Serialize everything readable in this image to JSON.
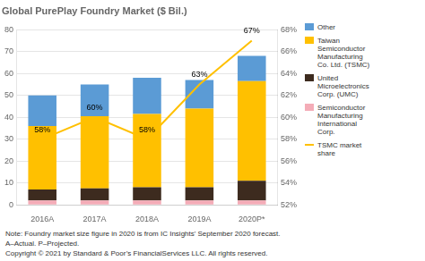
{
  "chart_data": {
    "type": "bar",
    "title": "Global PurePlay Foundry Market ($ Bil.)",
    "categories": [
      "2016A",
      "2017A",
      "2018A",
      "2019A",
      "2020P*"
    ],
    "stacked": true,
    "grid": true,
    "legend": "right",
    "series": [
      {
        "name": "Semiconductor\nManufacturing\nInternational\nCorp.",
        "color": "#f4acb7",
        "values": [
          2,
          2,
          2,
          2,
          2
        ]
      },
      {
        "name": "United\nMicroelectronics\nCorp. (UMC)",
        "color": "#3d2b1f",
        "values": [
          5,
          5.5,
          6,
          6,
          9
        ]
      },
      {
        "name": "Taiwan\nSemiconductor\nManufacturing\nCo. Ltd. (TSMC)",
        "color": "#ffc000",
        "values": [
          29,
          33,
          33.5,
          36,
          45.5
        ]
      },
      {
        "name": "Other",
        "color": "#5b9bd5",
        "values": [
          14,
          14.5,
          16.5,
          13,
          11.5
        ]
      },
      {
        "name": "TSMC market\nshare",
        "type": "line",
        "axis": "y2",
        "color": "#ffc000",
        "values": [
          58,
          60,
          58,
          63,
          67
        ],
        "data_labels": true,
        "value_labels": [
          "58%",
          "60%",
          "58%",
          "63%",
          "67%"
        ]
      }
    ],
    "ylim": [
      0,
      80
    ],
    "yticks": [
      0,
      10,
      20,
      30,
      40,
      50,
      60,
      70,
      80
    ],
    "y2lim": [
      52,
      68
    ],
    "y2ticks": [
      {
        "value": 52,
        "label": "52%"
      },
      {
        "value": 54,
        "label": "54%"
      },
      {
        "value": 56,
        "label": "56%"
      },
      {
        "value": 58,
        "label": "58%"
      },
      {
        "value": 60,
        "label": "60%"
      },
      {
        "value": 62,
        "label": "62%"
      },
      {
        "value": 64,
        "label": "64%"
      },
      {
        "value": 66,
        "label": "66%"
      },
      {
        "value": 68,
        "label": "68%"
      }
    ],
    "notes": [
      "Note: Foundry market size figure in 2020 is from IC Insights' September 2020 forecast.",
      "A–Actual. P–Projected.",
      "Copyright © 2021 by Standard & Poor’s FinancialServices LLC. All rights reserved."
    ]
  }
}
